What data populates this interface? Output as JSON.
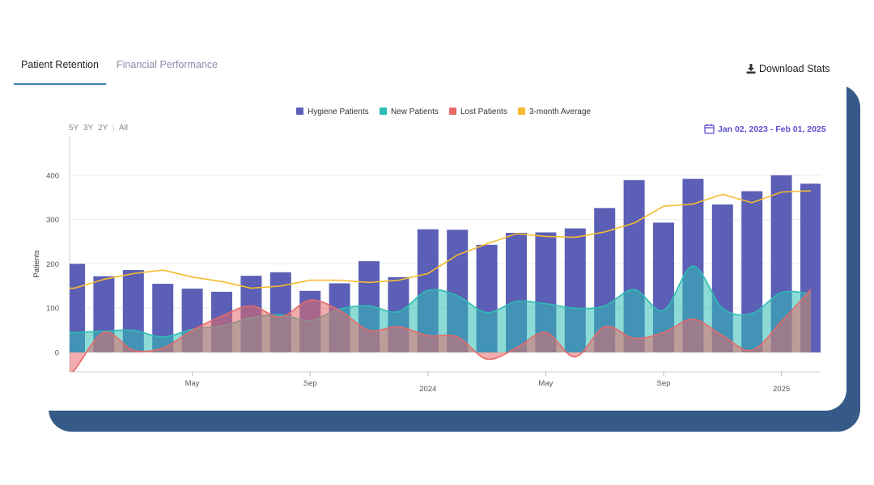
{
  "tabs": [
    {
      "label": "Patient Retention",
      "active": true
    },
    {
      "label": "Financial Performance",
      "active": false
    }
  ],
  "download_label": "Download Stats",
  "range_buttons": [
    "5Y",
    "3Y",
    "2Y",
    "All"
  ],
  "date_range": "Jan 02, 2023 - Feb 01, 2025",
  "colors": {
    "hygiene": "#5b5fb5",
    "new": "#2ebdb4",
    "lost": "#e66a6a",
    "average": "#f5bc31",
    "backdrop": "#355a87"
  },
  "chart_data": {
    "type": "bar",
    "ylabel": "Patients",
    "ylim": [
      -50,
      450
    ],
    "yticks": [
      0,
      100,
      200,
      300,
      400
    ],
    "xtick_labels": [
      {
        "label": "May",
        "index": 4
      },
      {
        "label": "Sep",
        "index": 8
      },
      {
        "label": "2024",
        "index": 12
      },
      {
        "label": "May",
        "index": 16
      },
      {
        "label": "Sep",
        "index": 20
      },
      {
        "label": "2025",
        "index": 24
      }
    ],
    "legend": [
      "Hygiene Patients",
      "New Patients",
      "Lost Patients",
      "3-month Average"
    ],
    "series": [
      {
        "name": "Hygiene Patients",
        "kind": "bar",
        "values": [
          200,
          172,
          186,
          155,
          144,
          137,
          173,
          181,
          139,
          156,
          206,
          170,
          278,
          277,
          243,
          270,
          271,
          280,
          326,
          389,
          293,
          392,
          334,
          364,
          400,
          381
        ]
      },
      {
        "name": "New Patients",
        "kind": "area",
        "values": [
          45,
          48,
          50,
          35,
          52,
          60,
          78,
          85,
          72,
          98,
          105,
          92,
          140,
          128,
          90,
          115,
          110,
          100,
          105,
          142,
          95,
          195,
          100,
          88,
          135,
          132
        ]
      },
      {
        "name": "Lost Patients",
        "kind": "area",
        "values": [
          -40,
          45,
          5,
          10,
          50,
          82,
          105,
          80,
          118,
          95,
          50,
          58,
          38,
          35,
          -15,
          10,
          45,
          -10,
          58,
          32,
          45,
          75,
          38,
          5,
          70,
          142
        ]
      },
      {
        "name": "3-month Average",
        "kind": "line",
        "values": [
          145,
          165,
          178,
          186,
          170,
          160,
          145,
          150,
          163,
          163,
          158,
          163,
          178,
          220,
          245,
          268,
          262,
          260,
          272,
          292,
          330,
          335,
          357,
          338,
          362,
          365
        ]
      }
    ]
  }
}
